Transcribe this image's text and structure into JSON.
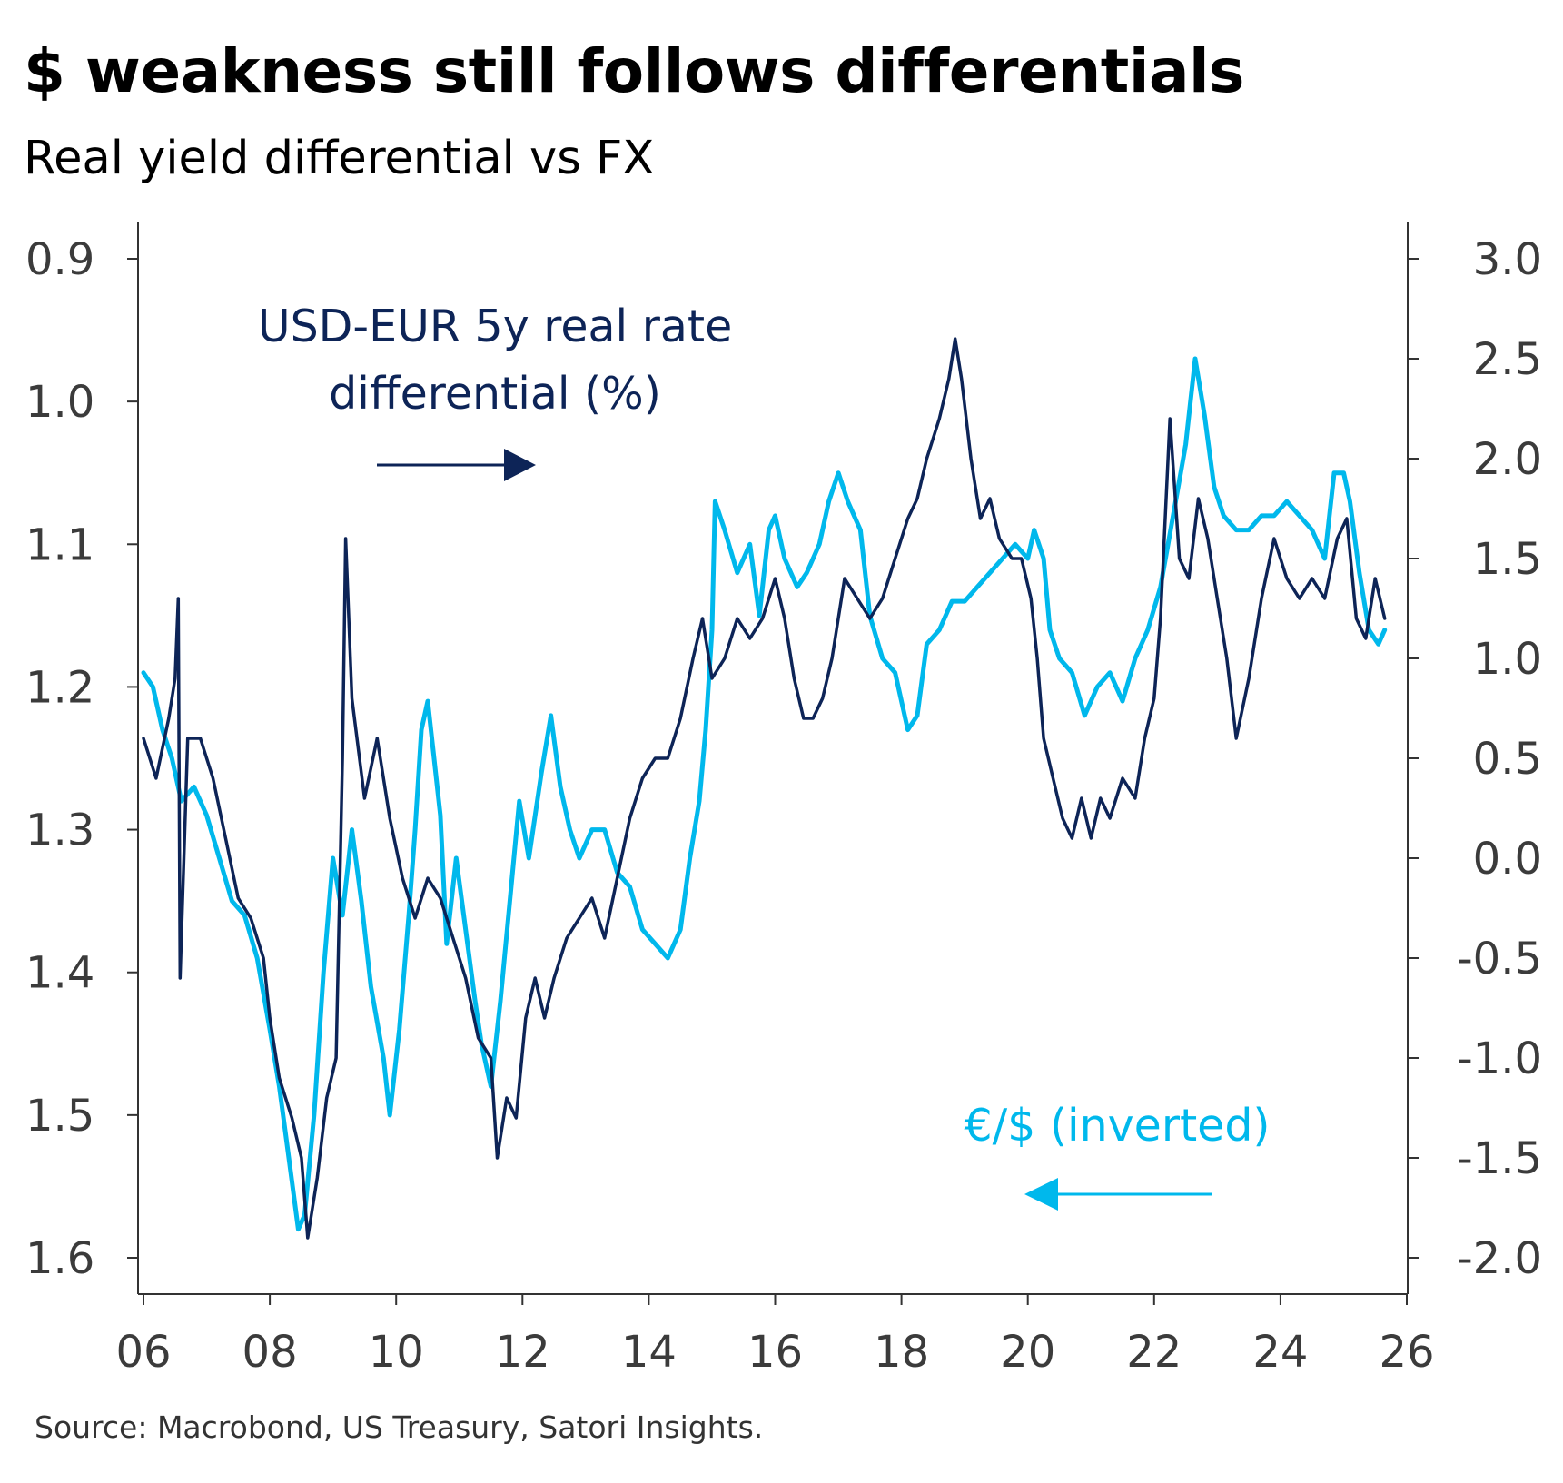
{
  "header": {
    "title": "$ weakness still follows differentials",
    "subtitle": "Real yield differential vs FX"
  },
  "footer": {
    "source": "Source: Macrobond, US Treasury, Satori Insights."
  },
  "colors": {
    "differential": "#0d2457",
    "fx": "#00b8ec",
    "axis": "#333333"
  },
  "chart_data": {
    "type": "line",
    "x_tick_labels": [
      "06",
      "08",
      "10",
      "12",
      "14",
      "16",
      "18",
      "20",
      "22",
      "24",
      "26"
    ],
    "x_tick_years": [
      2006,
      2008,
      2010,
      2012,
      2014,
      2016,
      2018,
      2020,
      2022,
      2024,
      2026
    ],
    "left_axis": {
      "label": "€/$ (inverted)",
      "inverted": true,
      "range": [
        0.9,
        1.6
      ],
      "tick_labels": [
        "0.9",
        "1.0",
        "1.1",
        "1.2",
        "1.3",
        "1.4",
        "1.5",
        "1.6"
      ],
      "tick_values": [
        0.9,
        1.0,
        1.1,
        1.2,
        1.3,
        1.4,
        1.5,
        1.6
      ]
    },
    "right_axis": {
      "label": "USD-EUR 5y real rate differential (%)",
      "range": [
        -2.0,
        3.0
      ],
      "tick_labels": [
        "3.0",
        "2.5",
        "2.0",
        "1.5",
        "1.0",
        "0.5",
        "0.0",
        "-0.5",
        "-1.0",
        "-1.5",
        "-2.0"
      ],
      "tick_values": [
        3.0,
        2.5,
        2.0,
        1.5,
        1.0,
        0.5,
        0.0,
        -0.5,
        -1.0,
        -1.5,
        -2.0
      ]
    },
    "annotations": {
      "differential_line1": "USD-EUR 5y real rate",
      "differential_line2": "differential (%)",
      "fx": "€/$ (inverted)"
    },
    "series": [
      {
        "name": "€/$ (inverted)",
        "axis": "left",
        "points": [
          [
            2006.0,
            1.19
          ],
          [
            2006.15,
            1.2
          ],
          [
            2006.3,
            1.23
          ],
          [
            2006.45,
            1.25
          ],
          [
            2006.6,
            1.28
          ],
          [
            2006.8,
            1.27
          ],
          [
            2007.0,
            1.29
          ],
          [
            2007.2,
            1.32
          ],
          [
            2007.4,
            1.35
          ],
          [
            2007.6,
            1.36
          ],
          [
            2007.8,
            1.39
          ],
          [
            2008.0,
            1.44
          ],
          [
            2008.15,
            1.48
          ],
          [
            2008.3,
            1.53
          ],
          [
            2008.45,
            1.58
          ],
          [
            2008.55,
            1.57
          ],
          [
            2008.7,
            1.5
          ],
          [
            2008.85,
            1.4
          ],
          [
            2009.0,
            1.32
          ],
          [
            2009.15,
            1.36
          ],
          [
            2009.3,
            1.3
          ],
          [
            2009.45,
            1.35
          ],
          [
            2009.6,
            1.41
          ],
          [
            2009.8,
            1.46
          ],
          [
            2009.9,
            1.5
          ],
          [
            2010.05,
            1.44
          ],
          [
            2010.2,
            1.36
          ],
          [
            2010.3,
            1.3
          ],
          [
            2010.4,
            1.23
          ],
          [
            2010.5,
            1.21
          ],
          [
            2010.7,
            1.29
          ],
          [
            2010.8,
            1.38
          ],
          [
            2010.95,
            1.32
          ],
          [
            2011.1,
            1.37
          ],
          [
            2011.25,
            1.42
          ],
          [
            2011.35,
            1.45
          ],
          [
            2011.5,
            1.48
          ],
          [
            2011.65,
            1.42
          ],
          [
            2011.8,
            1.35
          ],
          [
            2011.95,
            1.28
          ],
          [
            2012.1,
            1.32
          ],
          [
            2012.3,
            1.26
          ],
          [
            2012.45,
            1.22
          ],
          [
            2012.6,
            1.27
          ],
          [
            2012.75,
            1.3
          ],
          [
            2012.9,
            1.32
          ],
          [
            2013.1,
            1.3
          ],
          [
            2013.3,
            1.3
          ],
          [
            2013.5,
            1.33
          ],
          [
            2013.7,
            1.34
          ],
          [
            2013.9,
            1.37
          ],
          [
            2014.1,
            1.38
          ],
          [
            2014.3,
            1.39
          ],
          [
            2014.5,
            1.37
          ],
          [
            2014.65,
            1.32
          ],
          [
            2014.8,
            1.28
          ],
          [
            2014.9,
            1.23
          ],
          [
            2015.0,
            1.16
          ],
          [
            2015.05,
            1.07
          ],
          [
            2015.2,
            1.09
          ],
          [
            2015.4,
            1.12
          ],
          [
            2015.6,
            1.1
          ],
          [
            2015.75,
            1.15
          ],
          [
            2015.9,
            1.09
          ],
          [
            2016.0,
            1.08
          ],
          [
            2016.15,
            1.11
          ],
          [
            2016.35,
            1.13
          ],
          [
            2016.5,
            1.12
          ],
          [
            2016.7,
            1.1
          ],
          [
            2016.85,
            1.07
          ],
          [
            2017.0,
            1.05
          ],
          [
            2017.15,
            1.07
          ],
          [
            2017.35,
            1.09
          ],
          [
            2017.5,
            1.15
          ],
          [
            2017.7,
            1.18
          ],
          [
            2017.9,
            1.19
          ],
          [
            2018.1,
            1.23
          ],
          [
            2018.25,
            1.22
          ],
          [
            2018.4,
            1.17
          ],
          [
            2018.6,
            1.16
          ],
          [
            2018.8,
            1.14
          ],
          [
            2019.0,
            1.14
          ],
          [
            2019.2,
            1.13
          ],
          [
            2019.4,
            1.12
          ],
          [
            2019.6,
            1.11
          ],
          [
            2019.8,
            1.1
          ],
          [
            2020.0,
            1.11
          ],
          [
            2020.1,
            1.09
          ],
          [
            2020.25,
            1.11
          ],
          [
            2020.35,
            1.16
          ],
          [
            2020.5,
            1.18
          ],
          [
            2020.7,
            1.19
          ],
          [
            2020.9,
            1.22
          ],
          [
            2021.1,
            1.2
          ],
          [
            2021.3,
            1.19
          ],
          [
            2021.5,
            1.21
          ],
          [
            2021.7,
            1.18
          ],
          [
            2021.9,
            1.16
          ],
          [
            2022.1,
            1.13
          ],
          [
            2022.3,
            1.08
          ],
          [
            2022.5,
            1.03
          ],
          [
            2022.65,
            0.97
          ],
          [
            2022.8,
            1.01
          ],
          [
            2022.95,
            1.06
          ],
          [
            2023.1,
            1.08
          ],
          [
            2023.3,
            1.09
          ],
          [
            2023.5,
            1.09
          ],
          [
            2023.7,
            1.08
          ],
          [
            2023.9,
            1.08
          ],
          [
            2024.1,
            1.07
          ],
          [
            2024.3,
            1.08
          ],
          [
            2024.5,
            1.09
          ],
          [
            2024.7,
            1.11
          ],
          [
            2024.85,
            1.05
          ],
          [
            2025.0,
            1.05
          ],
          [
            2025.1,
            1.07
          ],
          [
            2025.25,
            1.12
          ],
          [
            2025.4,
            1.16
          ],
          [
            2025.55,
            1.17
          ],
          [
            2025.65,
            1.16
          ]
        ]
      },
      {
        "name": "USD-EUR 5y real rate differential (%)",
        "axis": "right",
        "points": [
          [
            2006.0,
            0.6
          ],
          [
            2006.2,
            0.4
          ],
          [
            2006.4,
            0.7
          ],
          [
            2006.5,
            0.9
          ],
          [
            2006.55,
            1.3
          ],
          [
            2006.58,
            -0.6
          ],
          [
            2006.7,
            0.6
          ],
          [
            2006.9,
            0.6
          ],
          [
            2007.1,
            0.4
          ],
          [
            2007.3,
            0.1
          ],
          [
            2007.5,
            -0.2
          ],
          [
            2007.7,
            -0.3
          ],
          [
            2007.9,
            -0.5
          ],
          [
            2008.0,
            -0.8
          ],
          [
            2008.15,
            -1.1
          ],
          [
            2008.35,
            -1.3
          ],
          [
            2008.5,
            -1.5
          ],
          [
            2008.6,
            -1.9
          ],
          [
            2008.75,
            -1.6
          ],
          [
            2008.9,
            -1.2
          ],
          [
            2009.05,
            -1.0
          ],
          [
            2009.15,
            0.5
          ],
          [
            2009.2,
            1.6
          ],
          [
            2009.3,
            0.8
          ],
          [
            2009.5,
            0.3
          ],
          [
            2009.7,
            0.6
          ],
          [
            2009.9,
            0.2
          ],
          [
            2010.1,
            -0.1
          ],
          [
            2010.3,
            -0.3
          ],
          [
            2010.5,
            -0.1
          ],
          [
            2010.7,
            -0.2
          ],
          [
            2010.9,
            -0.4
          ],
          [
            2011.1,
            -0.6
          ],
          [
            2011.3,
            -0.9
          ],
          [
            2011.5,
            -1.0
          ],
          [
            2011.6,
            -1.5
          ],
          [
            2011.75,
            -1.2
          ],
          [
            2011.9,
            -1.3
          ],
          [
            2012.05,
            -0.8
          ],
          [
            2012.2,
            -0.6
          ],
          [
            2012.35,
            -0.8
          ],
          [
            2012.5,
            -0.6
          ],
          [
            2012.7,
            -0.4
          ],
          [
            2012.9,
            -0.3
          ],
          [
            2013.1,
            -0.2
          ],
          [
            2013.3,
            -0.4
          ],
          [
            2013.5,
            -0.1
          ],
          [
            2013.7,
            0.2
          ],
          [
            2013.9,
            0.4
          ],
          [
            2014.1,
            0.5
          ],
          [
            2014.3,
            0.5
          ],
          [
            2014.5,
            0.7
          ],
          [
            2014.7,
            1.0
          ],
          [
            2014.85,
            1.2
          ],
          [
            2015.0,
            0.9
          ],
          [
            2015.2,
            1.0
          ],
          [
            2015.4,
            1.2
          ],
          [
            2015.6,
            1.1
          ],
          [
            2015.8,
            1.2
          ],
          [
            2016.0,
            1.4
          ],
          [
            2016.15,
            1.2
          ],
          [
            2016.3,
            0.9
          ],
          [
            2016.45,
            0.7
          ],
          [
            2016.6,
            0.7
          ],
          [
            2016.75,
            0.8
          ],
          [
            2016.9,
            1.0
          ],
          [
            2017.1,
            1.4
          ],
          [
            2017.3,
            1.3
          ],
          [
            2017.5,
            1.2
          ],
          [
            2017.7,
            1.3
          ],
          [
            2017.9,
            1.5
          ],
          [
            2018.1,
            1.7
          ],
          [
            2018.25,
            1.8
          ],
          [
            2018.4,
            2.0
          ],
          [
            2018.6,
            2.2
          ],
          [
            2018.75,
            2.4
          ],
          [
            2018.85,
            2.6
          ],
          [
            2018.95,
            2.4
          ],
          [
            2019.1,
            2.0
          ],
          [
            2019.25,
            1.7
          ],
          [
            2019.4,
            1.8
          ],
          [
            2019.55,
            1.6
          ],
          [
            2019.75,
            1.5
          ],
          [
            2019.9,
            1.5
          ],
          [
            2020.05,
            1.3
          ],
          [
            2020.15,
            1.0
          ],
          [
            2020.25,
            0.6
          ],
          [
            2020.4,
            0.4
          ],
          [
            2020.55,
            0.2
          ],
          [
            2020.7,
            0.1
          ],
          [
            2020.85,
            0.3
          ],
          [
            2021.0,
            0.1
          ],
          [
            2021.15,
            0.3
          ],
          [
            2021.3,
            0.2
          ],
          [
            2021.5,
            0.4
          ],
          [
            2021.7,
            0.3
          ],
          [
            2021.85,
            0.6
          ],
          [
            2022.0,
            0.8
          ],
          [
            2022.1,
            1.2
          ],
          [
            2022.25,
            2.2
          ],
          [
            2022.4,
            1.5
          ],
          [
            2022.55,
            1.4
          ],
          [
            2022.7,
            1.8
          ],
          [
            2022.85,
            1.6
          ],
          [
            2023.0,
            1.3
          ],
          [
            2023.15,
            1.0
          ],
          [
            2023.3,
            0.6
          ],
          [
            2023.5,
            0.9
          ],
          [
            2023.7,
            1.3
          ],
          [
            2023.9,
            1.6
          ],
          [
            2024.1,
            1.4
          ],
          [
            2024.3,
            1.3
          ],
          [
            2024.5,
            1.4
          ],
          [
            2024.7,
            1.3
          ],
          [
            2024.9,
            1.6
          ],
          [
            2025.05,
            1.7
          ],
          [
            2025.2,
            1.2
          ],
          [
            2025.35,
            1.1
          ],
          [
            2025.5,
            1.4
          ],
          [
            2025.65,
            1.2
          ]
        ]
      }
    ]
  }
}
